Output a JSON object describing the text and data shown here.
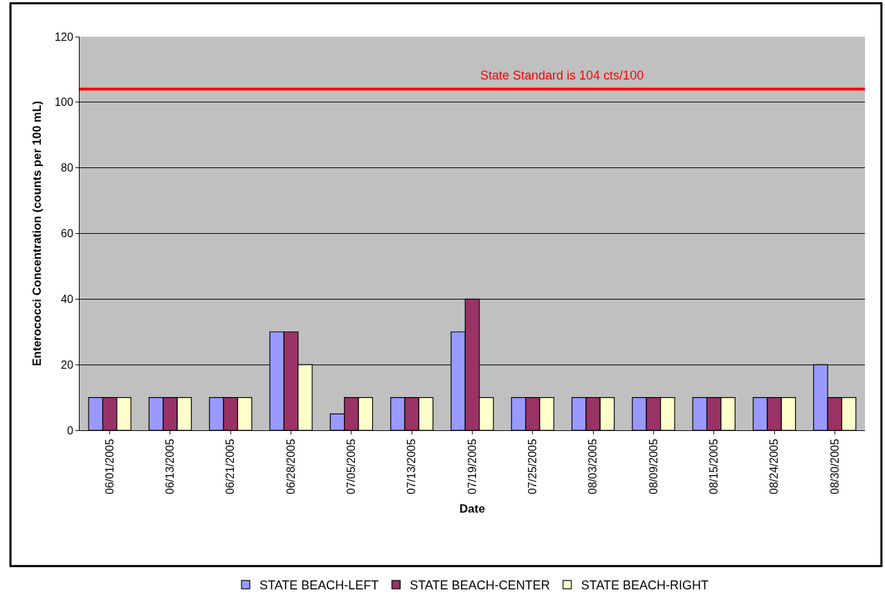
{
  "chart_data": {
    "type": "bar",
    "xlabel": "Date",
    "ylabel": "Enterococci Concentration (counts per 100 mL)",
    "categories": [
      "06/01/2005",
      "06/13/2005",
      "06/21/2005",
      "06/28/2005",
      "07/05/2005",
      "07/13/2005",
      "07/19/2005",
      "07/25/2005",
      "08/03/2005",
      "08/09/2005",
      "08/15/2005",
      "08/24/2005",
      "08/30/2005"
    ],
    "series": [
      {
        "name": "STATE BEACH-LEFT",
        "color": "#9999ff",
        "values": [
          10,
          10,
          10,
          30,
          5,
          10,
          30,
          10,
          10,
          10,
          10,
          10,
          20
        ]
      },
      {
        "name": "STATE BEACH-CENTER",
        "color": "#993366",
        "values": [
          10,
          10,
          10,
          30,
          10,
          10,
          40,
          10,
          10,
          10,
          10,
          10,
          10
        ]
      },
      {
        "name": "STATE BEACH-RIGHT",
        "color": "#ffffcc",
        "values": [
          10,
          10,
          10,
          20,
          10,
          10,
          10,
          10,
          10,
          10,
          10,
          10,
          10
        ]
      }
    ],
    "ylim": [
      0,
      120
    ],
    "yticks": [
      0,
      20,
      40,
      60,
      80,
      100,
      120
    ],
    "grid": "y",
    "legend": "bottom",
    "ref_lines": [
      {
        "axis": "y",
        "value": 104,
        "label": "State Standard is 104 cts/100",
        "color": "#ff0000"
      }
    ]
  }
}
